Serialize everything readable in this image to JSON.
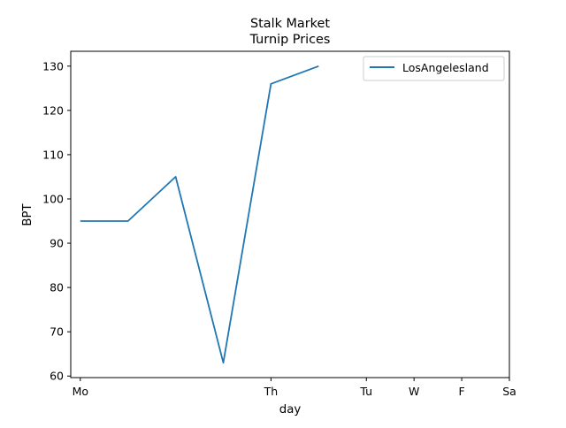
{
  "chart_data": {
    "type": "line",
    "title": "Stalk Market",
    "subtitle": "Turnip Prices",
    "xlabel": "day",
    "ylabel": "BPT",
    "x_ticks": [
      {
        "label": "Mo",
        "x": 0
      },
      {
        "label": "Th",
        "x": 4
      },
      {
        "label": "Tu",
        "x": 6
      },
      {
        "label": "W",
        "x": 7
      },
      {
        "label": "F",
        "x": 8
      },
      {
        "label": "Sa",
        "x": 9
      }
    ],
    "xlim": [
      -0.2,
      9
    ],
    "ylim": [
      59.65,
      133.35
    ],
    "y_ticks": [
      60,
      70,
      80,
      90,
      100,
      110,
      120,
      130
    ],
    "grid": false,
    "legend_position": "top-right",
    "series": [
      {
        "name": "LosAngelesland",
        "color": "#1f77b4",
        "x": [
          0,
          1,
          2,
          3,
          4,
          5
        ],
        "y": [
          95,
          95,
          105,
          63,
          126,
          130
        ]
      }
    ]
  }
}
